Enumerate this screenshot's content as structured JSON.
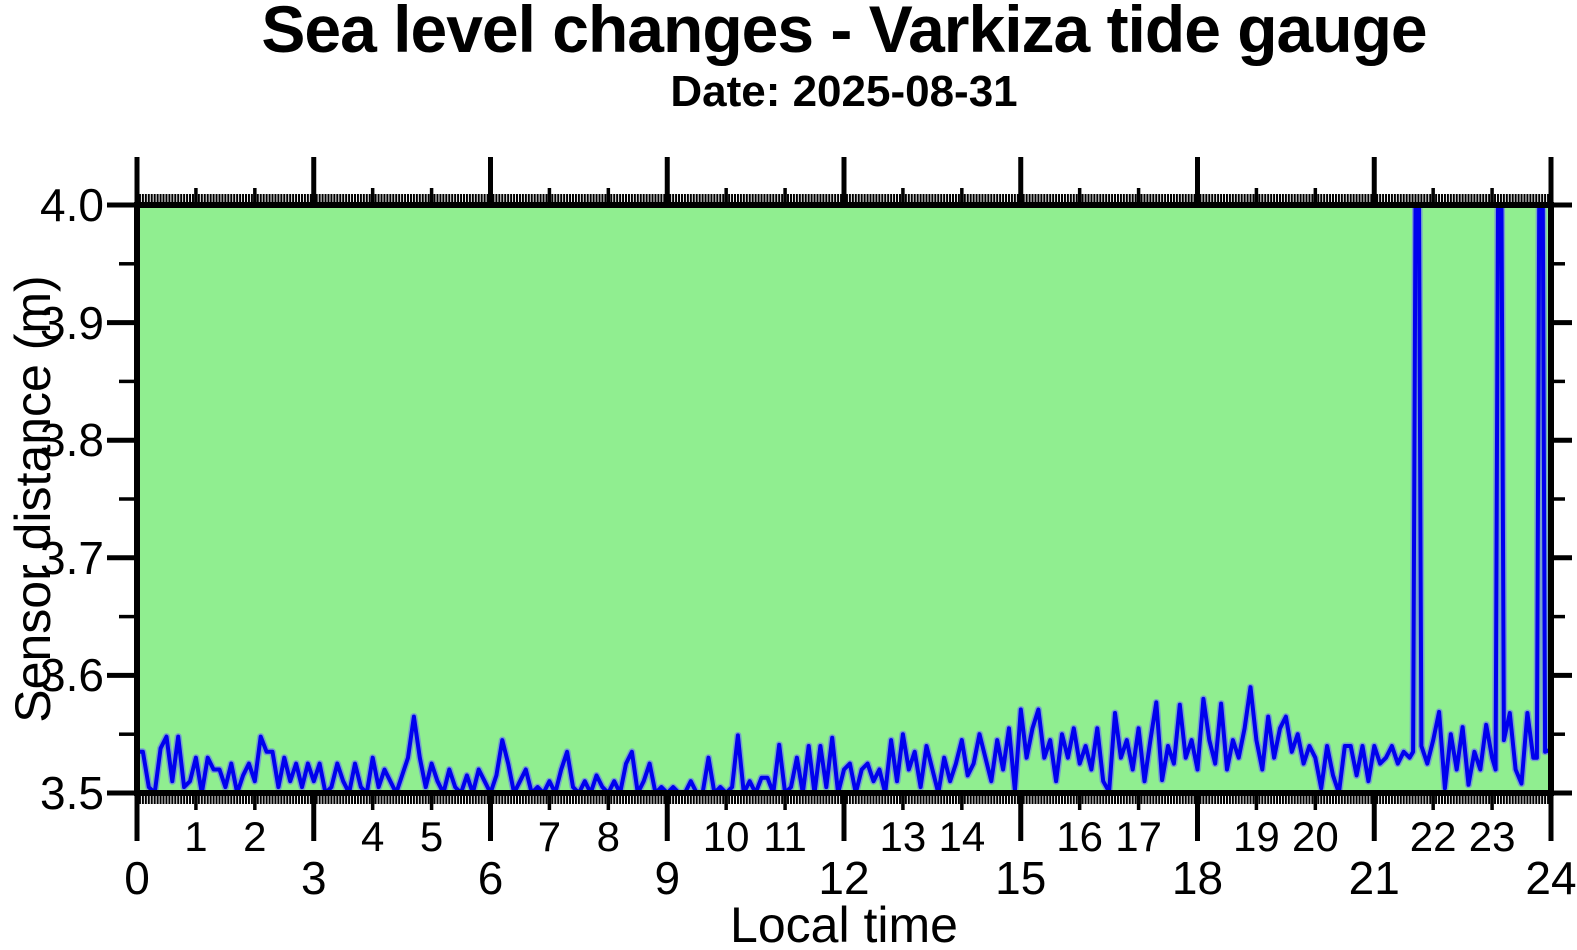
{
  "chart_data": {
    "type": "line",
    "title": "Sea level changes - Varkiza tide gauge",
    "subtitle": "Date: 2025-08-31",
    "xlabel": "Local time",
    "ylabel": "Sensor distance (m)",
    "xlim": [
      0,
      24
    ],
    "ylim": [
      3.5,
      4.0
    ],
    "x_unit": "hours",
    "grid": false,
    "legend": null,
    "plot_bg_color": "#90EE90",
    "line_color": "#0000EE",
    "frame_color": "#000000",
    "x_major_ticks": {
      "values": [
        0,
        3,
        6,
        9,
        12,
        15,
        18,
        21,
        24
      ],
      "labels": [
        "0",
        "3",
        "6",
        "9",
        "12",
        "15",
        "18",
        "21",
        "24"
      ]
    },
    "x_hour_ticks": {
      "values": [
        1,
        2,
        4,
        5,
        7,
        8,
        10,
        11,
        13,
        14,
        16,
        17,
        19,
        20,
        22,
        23
      ],
      "labels": [
        "1",
        "2",
        "4",
        "5",
        "7",
        "8",
        "10",
        "11",
        "13",
        "14",
        "16",
        "17",
        "19",
        "20",
        "22",
        "23"
      ]
    },
    "y_ticks": {
      "values": [
        3.5,
        3.6,
        3.7,
        3.8,
        3.9,
        4.0
      ],
      "labels": [
        "3.5",
        "3.6",
        "3.7",
        "3.8",
        "3.9",
        "4.0"
      ]
    },
    "y_minor_tick_step": 0.05,
    "series": [
      {
        "name": "sensor distance",
        "sampling_interval_hours": 0.1,
        "points": [
          [
            0,
            3.535
          ],
          [
            0.1,
            3.535
          ],
          [
            0.2,
            3.505
          ],
          [
            0.3,
            3.5
          ],
          [
            0.4,
            3.538
          ],
          [
            0.5,
            3.548
          ],
          [
            0.6,
            3.51
          ],
          [
            0.7,
            3.548
          ],
          [
            0.8,
            3.505
          ],
          [
            0.9,
            3.51
          ],
          [
            1,
            3.53
          ],
          [
            1.1,
            3.5
          ],
          [
            1.2,
            3.53
          ],
          [
            1.3,
            3.52
          ],
          [
            1.4,
            3.52
          ],
          [
            1.5,
            3.505
          ],
          [
            1.6,
            3.525
          ],
          [
            1.7,
            3.5
          ],
          [
            1.8,
            3.515
          ],
          [
            1.9,
            3.525
          ],
          [
            2,
            3.51
          ],
          [
            2.1,
            3.548
          ],
          [
            2.2,
            3.535
          ],
          [
            2.3,
            3.535
          ],
          [
            2.4,
            3.505
          ],
          [
            2.5,
            3.53
          ],
          [
            2.6,
            3.51
          ],
          [
            2.7,
            3.525
          ],
          [
            2.8,
            3.505
          ],
          [
            2.9,
            3.525
          ],
          [
            3,
            3.51
          ],
          [
            3.1,
            3.525
          ],
          [
            3.2,
            3.5
          ],
          [
            3.3,
            3.505
          ],
          [
            3.4,
            3.525
          ],
          [
            3.5,
            3.51
          ],
          [
            3.6,
            3.5
          ],
          [
            3.7,
            3.525
          ],
          [
            3.8,
            3.505
          ],
          [
            3.9,
            3.5
          ],
          [
            4,
            3.53
          ],
          [
            4.1,
            3.505
          ],
          [
            4.2,
            3.52
          ],
          [
            4.3,
            3.51
          ],
          [
            4.4,
            3.5
          ],
          [
            4.5,
            3.515
          ],
          [
            4.6,
            3.53
          ],
          [
            4.7,
            3.565
          ],
          [
            4.8,
            3.53
          ],
          [
            4.9,
            3.505
          ],
          [
            5,
            3.525
          ],
          [
            5.1,
            3.51
          ],
          [
            5.2,
            3.5
          ],
          [
            5.3,
            3.52
          ],
          [
            5.4,
            3.505
          ],
          [
            5.5,
            3.5
          ],
          [
            5.6,
            3.515
          ],
          [
            5.7,
            3.5
          ],
          [
            5.8,
            3.52
          ],
          [
            5.9,
            3.51
          ],
          [
            6,
            3.5
          ],
          [
            6.1,
            3.515
          ],
          [
            6.2,
            3.545
          ],
          [
            6.3,
            3.525
          ],
          [
            6.4,
            3.5
          ],
          [
            6.5,
            3.51
          ],
          [
            6.6,
            3.52
          ],
          [
            6.7,
            3.5
          ],
          [
            6.8,
            3.505
          ],
          [
            6.9,
            3.5
          ],
          [
            7,
            3.51
          ],
          [
            7.1,
            3.5
          ],
          [
            7.2,
            3.52
          ],
          [
            7.3,
            3.535
          ],
          [
            7.4,
            3.505
          ],
          [
            7.5,
            3.5
          ],
          [
            7.6,
            3.51
          ],
          [
            7.7,
            3.5
          ],
          [
            7.8,
            3.515
          ],
          [
            7.9,
            3.505
          ],
          [
            8,
            3.5
          ],
          [
            8.1,
            3.51
          ],
          [
            8.2,
            3.5
          ],
          [
            8.3,
            3.525
          ],
          [
            8.4,
            3.535
          ],
          [
            8.5,
            3.5
          ],
          [
            8.6,
            3.51
          ],
          [
            8.7,
            3.525
          ],
          [
            8.8,
            3.5
          ],
          [
            8.9,
            3.505
          ],
          [
            9,
            3.5
          ],
          [
            9.1,
            3.505
          ],
          [
            9.2,
            3.5
          ],
          [
            9.3,
            3.5
          ],
          [
            9.4,
            3.51
          ],
          [
            9.5,
            3.5
          ],
          [
            9.6,
            3.5
          ],
          [
            9.7,
            3.53
          ],
          [
            9.8,
            3.5
          ],
          [
            9.9,
            3.505
          ],
          [
            10,
            3.5
          ],
          [
            10.1,
            3.505
          ],
          [
            10.2,
            3.549
          ],
          [
            10.3,
            3.5
          ],
          [
            10.4,
            3.51
          ],
          [
            10.5,
            3.5
          ],
          [
            10.6,
            3.513
          ],
          [
            10.7,
            3.513
          ],
          [
            10.8,
            3.5
          ],
          [
            10.9,
            3.541
          ],
          [
            11,
            3.5
          ],
          [
            11.1,
            3.505
          ],
          [
            11.2,
            3.53
          ],
          [
            11.3,
            3.5
          ],
          [
            11.4,
            3.54
          ],
          [
            11.5,
            3.5
          ],
          [
            11.6,
            3.54
          ],
          [
            11.7,
            3.505
          ],
          [
            11.8,
            3.547
          ],
          [
            11.9,
            3.5
          ],
          [
            12,
            3.52
          ],
          [
            12.1,
            3.525
          ],
          [
            12.2,
            3.5
          ],
          [
            12.3,
            3.52
          ],
          [
            12.4,
            3.525
          ],
          [
            12.5,
            3.51
          ],
          [
            12.6,
            3.52
          ],
          [
            12.7,
            3.5
          ],
          [
            12.8,
            3.545
          ],
          [
            12.9,
            3.51
          ],
          [
            13,
            3.55
          ],
          [
            13.1,
            3.52
          ],
          [
            13.2,
            3.535
          ],
          [
            13.3,
            3.505
          ],
          [
            13.4,
            3.54
          ],
          [
            13.5,
            3.52
          ],
          [
            13.6,
            3.5
          ],
          [
            13.7,
            3.53
          ],
          [
            13.8,
            3.51
          ],
          [
            13.9,
            3.525
          ],
          [
            14,
            3.545
          ],
          [
            14.1,
            3.515
          ],
          [
            14.2,
            3.525
          ],
          [
            14.3,
            3.55
          ],
          [
            14.4,
            3.53
          ],
          [
            14.5,
            3.51
          ],
          [
            14.6,
            3.545
          ],
          [
            14.7,
            3.52
          ],
          [
            14.8,
            3.555
          ],
          [
            14.9,
            3.502
          ],
          [
            15,
            3.571
          ],
          [
            15.1,
            3.53
          ],
          [
            15.2,
            3.555
          ],
          [
            15.3,
            3.571
          ],
          [
            15.4,
            3.53
          ],
          [
            15.5,
            3.545
          ],
          [
            15.6,
            3.51
          ],
          [
            15.7,
            3.55
          ],
          [
            15.8,
            3.53
          ],
          [
            15.9,
            3.555
          ],
          [
            16,
            3.525
          ],
          [
            16.1,
            3.54
          ],
          [
            16.2,
            3.52
          ],
          [
            16.3,
            3.555
          ],
          [
            16.4,
            3.51
          ],
          [
            16.5,
            3.501
          ],
          [
            16.6,
            3.568
          ],
          [
            16.7,
            3.53
          ],
          [
            16.8,
            3.545
          ],
          [
            16.9,
            3.52
          ],
          [
            17,
            3.555
          ],
          [
            17.1,
            3.51
          ],
          [
            17.2,
            3.545
          ],
          [
            17.3,
            3.577
          ],
          [
            17.4,
            3.511
          ],
          [
            17.5,
            3.54
          ],
          [
            17.6,
            3.525
          ],
          [
            17.7,
            3.575
          ],
          [
            17.8,
            3.53
          ],
          [
            17.9,
            3.545
          ],
          [
            18,
            3.52
          ],
          [
            18.1,
            3.58
          ],
          [
            18.2,
            3.545
          ],
          [
            18.3,
            3.525
          ],
          [
            18.4,
            3.576
          ],
          [
            18.5,
            3.52
          ],
          [
            18.6,
            3.545
          ],
          [
            18.7,
            3.53
          ],
          [
            18.8,
            3.555
          ],
          [
            18.9,
            3.59
          ],
          [
            19,
            3.545
          ],
          [
            19.1,
            3.52
          ],
          [
            19.2,
            3.565
          ],
          [
            19.3,
            3.53
          ],
          [
            19.4,
            3.555
          ],
          [
            19.5,
            3.565
          ],
          [
            19.6,
            3.535
          ],
          [
            19.7,
            3.55
          ],
          [
            19.8,
            3.525
          ],
          [
            19.9,
            3.54
          ],
          [
            20,
            3.53
          ],
          [
            20.1,
            3.504
          ],
          [
            20.2,
            3.54
          ],
          [
            20.3,
            3.515
          ],
          [
            20.4,
            3.5
          ],
          [
            20.5,
            3.54
          ],
          [
            20.6,
            3.54
          ],
          [
            20.7,
            3.515
          ],
          [
            20.8,
            3.54
          ],
          [
            20.9,
            3.51
          ],
          [
            21,
            3.54
          ],
          [
            21.1,
            3.525
          ],
          [
            21.2,
            3.53
          ],
          [
            21.3,
            3.54
          ],
          [
            21.4,
            3.525
          ],
          [
            21.5,
            3.535
          ],
          [
            21.6,
            3.53
          ],
          [
            21.66,
            3.535
          ],
          [
            21.7,
            4.0
          ],
          [
            21.76,
            4.0
          ],
          [
            21.8,
            3.54
          ],
          [
            21.9,
            3.525
          ],
          [
            22,
            3.545
          ],
          [
            22.1,
            3.569
          ],
          [
            22.2,
            3.504
          ],
          [
            22.3,
            3.55
          ],
          [
            22.4,
            3.52
          ],
          [
            22.5,
            3.556
          ],
          [
            22.6,
            3.507
          ],
          [
            22.7,
            3.535
          ],
          [
            22.8,
            3.52
          ],
          [
            22.9,
            3.558
          ],
          [
            23,
            3.53
          ],
          [
            23.06,
            3.52
          ],
          [
            23.1,
            4.0
          ],
          [
            23.16,
            4.0
          ],
          [
            23.2,
            3.545
          ],
          [
            23.3,
            3.568
          ],
          [
            23.4,
            3.52
          ],
          [
            23.5,
            3.508
          ],
          [
            23.6,
            3.568
          ],
          [
            23.7,
            3.53
          ],
          [
            23.76,
            3.53
          ],
          [
            23.8,
            4.0
          ],
          [
            23.86,
            4.0
          ],
          [
            23.9,
            3.535
          ],
          [
            24,
            3.537
          ]
        ]
      }
    ]
  }
}
